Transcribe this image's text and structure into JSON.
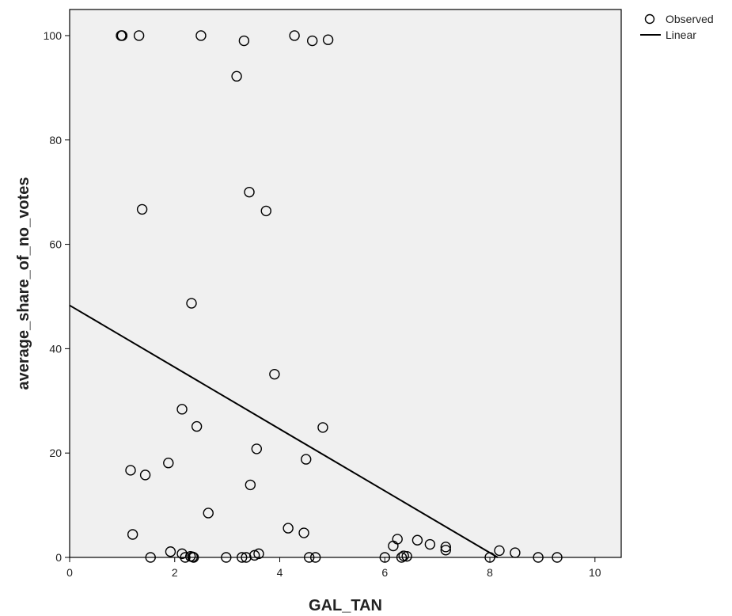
{
  "chart_data": {
    "type": "scatter",
    "xlabel": "GAL_TAN",
    "ylabel": "average_share_of_no_votes",
    "xlim": [
      0,
      10.5
    ],
    "ylim": [
      0,
      105
    ],
    "x_ticks": [
      "0",
      "2",
      "4",
      "6",
      "8",
      "10"
    ],
    "y_ticks": [
      "0",
      "20",
      "40",
      "60",
      "80",
      "100"
    ],
    "grid": false,
    "legend": {
      "placement": "top-right outside",
      "entries": [
        "Observed",
        "Linear"
      ]
    },
    "colors": {
      "plot_background": "#f0f0f0",
      "marker_stroke": "#000000",
      "line": "#000000"
    },
    "series": [
      {
        "name": "Observed",
        "kind": "scatter",
        "points": [
          [
            0.98,
            100
          ],
          [
            1.0,
            100
          ],
          [
            1.32,
            100
          ],
          [
            2.5,
            100
          ],
          [
            3.32,
            99
          ],
          [
            4.28,
            100
          ],
          [
            4.62,
            99
          ],
          [
            4.92,
            99.2
          ],
          [
            3.18,
            92.2
          ],
          [
            3.42,
            70
          ],
          [
            3.74,
            66.4
          ],
          [
            1.38,
            66.7
          ],
          [
            2.32,
            48.7
          ],
          [
            3.9,
            35.1
          ],
          [
            2.14,
            28.4
          ],
          [
            2.42,
            25.1
          ],
          [
            4.82,
            24.9
          ],
          [
            3.56,
            20.8
          ],
          [
            4.5,
            18.8
          ],
          [
            1.88,
            18.1
          ],
          [
            1.16,
            16.7
          ],
          [
            1.44,
            15.8
          ],
          [
            3.44,
            13.9
          ],
          [
            2.64,
            8.5
          ],
          [
            4.16,
            5.6
          ],
          [
            4.46,
            4.7
          ],
          [
            1.2,
            4.4
          ],
          [
            6.24,
            3.5
          ],
          [
            6.62,
            3.3
          ],
          [
            6.86,
            2.5
          ],
          [
            6.16,
            2.2
          ],
          [
            7.16,
            2.0
          ],
          [
            7.16,
            1.4
          ],
          [
            1.92,
            1.1
          ],
          [
            8.18,
            1.3
          ],
          [
            8.48,
            0.9
          ],
          [
            2.14,
            0.7
          ],
          [
            3.6,
            0.7
          ],
          [
            3.52,
            0.4
          ],
          [
            2.3,
            0.2
          ],
          [
            2.34,
            0.1
          ],
          [
            6.36,
            0.3
          ],
          [
            6.42,
            0.2
          ],
          [
            1.54,
            0
          ],
          [
            2.2,
            0
          ],
          [
            2.36,
            0
          ],
          [
            2.98,
            0
          ],
          [
            3.28,
            0
          ],
          [
            3.36,
            0
          ],
          [
            4.56,
            0
          ],
          [
            4.68,
            0
          ],
          [
            6.0,
            0
          ],
          [
            6.32,
            0
          ],
          [
            8.0,
            0
          ],
          [
            8.92,
            0
          ],
          [
            9.28,
            0
          ]
        ]
      },
      {
        "name": "Linear",
        "kind": "line",
        "points": [
          [
            0,
            48.3
          ],
          [
            8.15,
            0
          ]
        ]
      }
    ]
  }
}
